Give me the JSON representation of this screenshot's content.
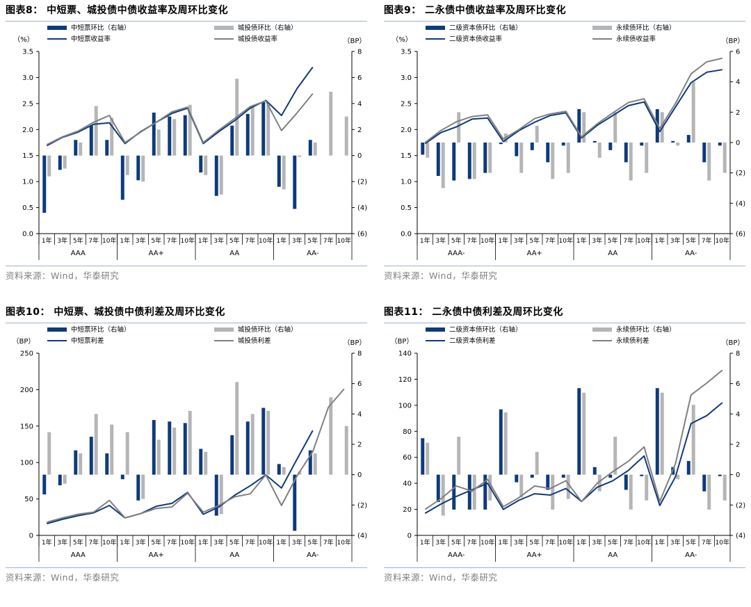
{
  "panels": [
    {
      "id": "p8",
      "title": "图表8：  中短票、城投债中债收益率及周环比变化",
      "source": "资料来源：Wind，华泰研究",
      "chart_data": {
        "type": "bar+line",
        "left_unit": "（%）",
        "right_unit": "（BP）",
        "left_ticks": [
          "0.0",
          "0.5",
          "1.0",
          "1.5",
          "2.0",
          "2.5",
          "3.0",
          "3.5"
        ],
        "left_range": [
          0,
          3.5
        ],
        "right_ticks": [
          "(6)",
          "(4)",
          "(2)",
          "0",
          "2",
          "4",
          "6",
          "8"
        ],
        "right_range": [
          -6,
          8
        ],
        "groups": [
          "AAA",
          "AA+",
          "AA",
          "AA-"
        ],
        "terms": [
          "1年",
          "3年",
          "5年",
          "7年",
          "10年"
        ],
        "series": [
          {
            "name": "中短票环比（右轴）",
            "kind": "bar",
            "axis": "right",
            "color": "#0f3a7a",
            "values": [
              -4.4,
              -1.1,
              1.2,
              2.3,
              1.2,
              -3.4,
              -1.9,
              3.3,
              3.0,
              3.1,
              -1.3,
              -3.1,
              2.3,
              3.2,
              4.1,
              -2.4,
              -4.1,
              1.2,
              null,
              null
            ]
          },
          {
            "name": "城投债环比（右轴）",
            "kind": "bar",
            "axis": "right",
            "color": "#b5b5b5",
            "values": [
              -1.6,
              -1.0,
              1.0,
              3.8,
              2.9,
              -1.5,
              -2.0,
              2.0,
              2.8,
              3.9,
              -1.5,
              -3.0,
              5.9,
              3.8,
              3.9,
              -2.6,
              -0.1,
              1.0,
              4.9,
              3.0
            ]
          },
          {
            "name": "中短票收益率",
            "kind": "line",
            "axis": "left",
            "color": "#0f3a7a",
            "values": [
              1.69,
              1.85,
              1.95,
              2.1,
              2.13,
              1.73,
              1.96,
              2.14,
              2.31,
              2.41,
              1.73,
              1.96,
              2.17,
              2.41,
              2.56,
              2.27,
              2.79,
              3.2,
              null,
              null
            ]
          },
          {
            "name": "城投债收益率",
            "kind": "line",
            "axis": "left",
            "color": "#808080",
            "values": [
              1.71,
              1.86,
              1.97,
              2.14,
              2.27,
              1.75,
              1.95,
              2.14,
              2.34,
              2.43,
              1.75,
              1.99,
              2.21,
              2.44,
              2.55,
              1.98,
              2.32,
              2.69,
              null,
              null
            ]
          }
        ]
      }
    },
    {
      "id": "p9",
      "title": "图表9：  二永债中债收益率及周环比变化",
      "source": "资料来源：Wind，华泰研究",
      "chart_data": {
        "type": "bar+line",
        "left_unit": "（%）",
        "right_unit": "（BP）",
        "left_ticks": [
          "0.0",
          "0.5",
          "1.0",
          "1.5",
          "2.0",
          "2.5",
          "3.0",
          "3.5"
        ],
        "left_range": [
          0,
          3.5
        ],
        "right_ticks": [
          "(6)",
          "(4)",
          "(2)",
          "0",
          "2",
          "4",
          "6"
        ],
        "right_range": [
          -6,
          6
        ],
        "groups": [
          "AAA-",
          "AA+",
          "AA",
          "AA-"
        ],
        "terms": [
          "1年",
          "3年",
          "5年",
          "7年",
          "10年"
        ],
        "series": [
          {
            "name": "二级资本债环比（右轴）",
            "kind": "bar",
            "axis": "right",
            "color": "#0f3a7a",
            "values": [
              -0.8,
              -2.2,
              -2.5,
              -2.4,
              -2.0,
              -0.1,
              -0.9,
              -0.5,
              -1.3,
              -0.2,
              2.2,
              0.1,
              -0.5,
              -1.3,
              -0.2,
              2.2,
              0.1,
              0.5,
              -1.3,
              -0.2
            ]
          },
          {
            "name": "永续债环比（右轴）",
            "kind": "bar",
            "axis": "right",
            "color": "#b5b5b5",
            "values": [
              -1.0,
              -3.0,
              2.0,
              -2.4,
              -2.0,
              0.6,
              -2.0,
              1.1,
              -2.4,
              -2.0,
              2.0,
              -1.0,
              2.0,
              -2.5,
              -2.0,
              2.0,
              -0.2,
              4.0,
              -2.5,
              -2.0
            ]
          },
          {
            "name": "二级资本债收益率",
            "kind": "line",
            "axis": "left",
            "color": "#0f3a7a",
            "values": [
              1.73,
              1.94,
              2.05,
              2.2,
              2.22,
              1.77,
              1.98,
              2.14,
              2.27,
              2.32,
              1.84,
              2.08,
              2.27,
              2.46,
              2.53,
              1.96,
              2.43,
              2.9,
              3.1,
              3.15
            ]
          },
          {
            "name": "永续债收益率",
            "kind": "line",
            "axis": "left",
            "color": "#808080",
            "values": [
              1.75,
              1.98,
              2.15,
              2.25,
              2.28,
              1.82,
              2.0,
              2.21,
              2.3,
              2.35,
              1.86,
              2.11,
              2.32,
              2.52,
              2.59,
              2.02,
              2.5,
              3.07,
              3.3,
              3.37
            ]
          }
        ]
      }
    },
    {
      "id": "p10",
      "title": "图表10：  中短票、城投债中债利差及周环比变化",
      "source": "资料来源：Wind，华泰研究",
      "chart_data": {
        "type": "bar+line",
        "left_unit": "（BP）",
        "right_unit": "（BP）",
        "left_ticks": [
          "0",
          "50",
          "100",
          "150",
          "200",
          "250"
        ],
        "left_range": [
          0,
          250
        ],
        "right_ticks": [
          "(4)",
          "(2)",
          "0",
          "2",
          "4",
          "6",
          "8"
        ],
        "right_range": [
          -4,
          8
        ],
        "groups": [
          "AAA",
          "AA+",
          "AA",
          "AA-"
        ],
        "terms": [
          "1年",
          "3年",
          "5年",
          "7年",
          "10年"
        ],
        "series": [
          {
            "name": "中短票环比（右轴）",
            "kind": "bar",
            "axis": "right",
            "color": "#0f3a7a",
            "values": [
              -1.3,
              -0.7,
              1.6,
              2.5,
              1.4,
              -0.3,
              -1.7,
              3.6,
              3.5,
              3.4,
              1.7,
              -2.7,
              2.6,
              3.5,
              4.4,
              0.7,
              -3.7,
              1.6,
              null,
              null
            ]
          },
          {
            "name": "城投债环比（右轴）",
            "kind": "bar",
            "axis": "right",
            "color": "#b5b5b5",
            "values": [
              2.8,
              -0.6,
              1.4,
              4.0,
              3.3,
              2.8,
              -1.6,
              2.3,
              3.1,
              4.2,
              1.5,
              -2.6,
              6.1,
              4.0,
              4.2,
              0.5,
              0.2,
              1.4,
              5.1,
              3.2
            ]
          },
          {
            "name": "中短票利差",
            "kind": "line",
            "axis": "left",
            "color": "#0f3a7a",
            "values": [
              16,
              22,
              27,
              31,
              41,
              24,
              30,
              40,
              44,
              59,
              29,
              39,
              55,
              68,
              83,
              65,
              105,
              144,
              null,
              null
            ]
          },
          {
            "name": "城投债利差",
            "kind": "line",
            "axis": "left",
            "color": "#808080",
            "values": [
              18,
              24,
              29,
              32,
              48,
              24,
              30,
              37,
              39,
              58,
              32,
              41,
              53,
              57,
              83,
              41,
              82,
              115,
              176,
              201
            ]
          }
        ]
      }
    },
    {
      "id": "p11",
      "title": "图表11：  二永债中债利差及周环比变化",
      "source": "资料来源：Wind，华泰研究",
      "chart_data": {
        "type": "bar+line",
        "left_unit": "（BP）",
        "right_unit": "（BP）",
        "left_ticks": [
          "0",
          "20",
          "40",
          "60",
          "80",
          "100",
          "120",
          "140"
        ],
        "left_range": [
          0,
          140
        ],
        "right_ticks": [
          "(4)",
          "(2)",
          "0",
          "2",
          "4",
          "6",
          "8"
        ],
        "right_range": [
          -4,
          8
        ],
        "groups": [
          "AAA-",
          "AA+",
          "AA",
          "AA-"
        ],
        "terms": [
          "1年",
          "3年",
          "5年",
          "7年",
          "10年"
        ],
        "series": [
          {
            "name": "二级资本债环比（右轴）",
            "kind": "bar",
            "axis": "right",
            "color": "#0f3a7a",
            "values": [
              2.4,
              -1.8,
              -2.3,
              -2.3,
              -2.3,
              4.3,
              -0.5,
              -0.2,
              -1.0,
              -0.2,
              5.7,
              0.5,
              -0.2,
              -1.0,
              -0.1,
              5.7,
              0.5,
              0.9,
              -1.1,
              -0.1
            ]
          },
          {
            "name": "永续债环比（右轴）",
            "kind": "bar",
            "axis": "right",
            "color": "#b5b5b5",
            "values": [
              2.1,
              -2.7,
              2.5,
              -2.3,
              -1.7,
              4.1,
              -1.5,
              1.5,
              -2.3,
              -1.6,
              5.4,
              -1.1,
              2.5,
              -2.3,
              -1.7,
              5.4,
              -0.3,
              4.6,
              -2.3,
              -1.7
            ]
          },
          {
            "name": "二级资本债利差",
            "kind": "line",
            "axis": "left",
            "color": "#0f3a7a",
            "values": [
              17,
              24,
              30,
              35,
              40,
              20,
              27,
              32,
              31,
              36,
              26,
              37,
              42,
              50,
              61,
              23,
              45,
              86,
              92,
              102
            ]
          },
          {
            "name": "永续债利差",
            "kind": "line",
            "axis": "left",
            "color": "#808080",
            "values": [
              20,
              28,
              38,
              34,
              43,
              22,
              29,
              38,
              36,
              42,
              26,
              40,
              49,
              57,
              68,
              26,
              55,
              108,
              117,
              127
            ]
          }
        ]
      }
    }
  ]
}
